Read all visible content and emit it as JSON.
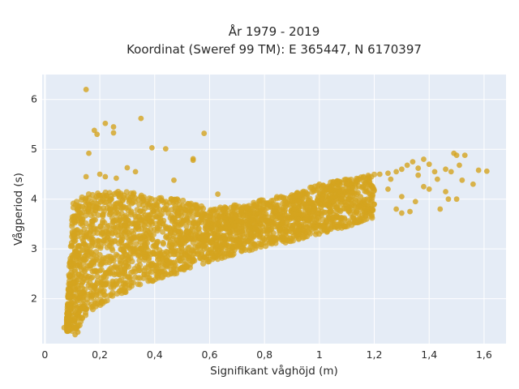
{
  "chart_data": {
    "type": "scatter",
    "title": "År 1979 - 2019",
    "subtitle": "Koordinat (Sweref 99 TM): E 365447, N 6170397",
    "xlabel": "Signifikant våghöjd (m)",
    "ylabel": "Vågperiod (s)",
    "xlim": [
      -0.01,
      1.68
    ],
    "ylim": [
      1.1,
      6.5
    ],
    "x_ticks": [
      0,
      0.2,
      0.4,
      0.6,
      0.8,
      1.0,
      1.2,
      1.4,
      1.6
    ],
    "x_tick_labels": [
      "0",
      "0,2",
      "0,4",
      "0,6",
      "0,8",
      "1",
      "1,2",
      "1,4",
      "1,6"
    ],
    "y_ticks": [
      2,
      3,
      4,
      5,
      6
    ],
    "y_tick_labels": [
      "2",
      "3",
      "4",
      "5",
      "6"
    ],
    "grid": true,
    "legend": "none",
    "marker_color": "#d4a41f",
    "background_color": "#e5ecf6",
    "band": {
      "x": [
        0.08,
        0.1,
        0.15,
        0.2,
        0.25,
        0.3,
        0.4,
        0.5,
        0.6,
        0.7,
        0.8,
        0.9,
        1.0,
        1.1,
        1.2
      ],
      "y_low": [
        1.35,
        1.3,
        1.6,
        1.85,
        2.0,
        2.15,
        2.35,
        2.55,
        2.75,
        2.9,
        3.05,
        3.15,
        3.3,
        3.45,
        3.6
      ],
      "y_high": [
        1.6,
        3.9,
        4.1,
        4.15,
        4.15,
        4.15,
        4.05,
        4.0,
        3.8,
        3.9,
        4.0,
        4.1,
        4.3,
        4.4,
        4.5
      ]
    },
    "points": [
      {
        "x": 0.15,
        "y": 6.2
      },
      {
        "x": 0.18,
        "y": 5.38
      },
      {
        "x": 0.19,
        "y": 5.3
      },
      {
        "x": 0.22,
        "y": 5.52
      },
      {
        "x": 0.25,
        "y": 5.45
      },
      {
        "x": 0.25,
        "y": 5.33
      },
      {
        "x": 0.35,
        "y": 5.62
      },
      {
        "x": 0.16,
        "y": 4.92
      },
      {
        "x": 0.39,
        "y": 5.03
      },
      {
        "x": 0.44,
        "y": 5.01
      },
      {
        "x": 0.58,
        "y": 5.32
      },
      {
        "x": 0.54,
        "y": 4.81
      },
      {
        "x": 0.54,
        "y": 4.78
      },
      {
        "x": 0.3,
        "y": 4.63
      },
      {
        "x": 0.33,
        "y": 4.55
      },
      {
        "x": 0.22,
        "y": 4.45
      },
      {
        "x": 0.26,
        "y": 4.42
      },
      {
        "x": 0.15,
        "y": 4.45
      },
      {
        "x": 0.2,
        "y": 4.5
      },
      {
        "x": 0.47,
        "y": 4.38
      },
      {
        "x": 0.63,
        "y": 4.1
      },
      {
        "x": 0.77,
        "y": 3.85
      },
      {
        "x": 0.86,
        "y": 4.05
      },
      {
        "x": 1.0,
        "y": 4.3
      },
      {
        "x": 1.05,
        "y": 4.35
      },
      {
        "x": 1.1,
        "y": 4.3
      },
      {
        "x": 1.18,
        "y": 4.45
      },
      {
        "x": 1.22,
        "y": 4.5
      },
      {
        "x": 1.25,
        "y": 4.52
      },
      {
        "x": 1.28,
        "y": 4.55
      },
      {
        "x": 1.3,
        "y": 4.6
      },
      {
        "x": 1.32,
        "y": 4.68
      },
      {
        "x": 1.34,
        "y": 4.75
      },
      {
        "x": 1.36,
        "y": 4.62
      },
      {
        "x": 1.38,
        "y": 4.8
      },
      {
        "x": 1.4,
        "y": 4.7
      },
      {
        "x": 1.42,
        "y": 4.55
      },
      {
        "x": 1.46,
        "y": 4.6
      },
      {
        "x": 1.48,
        "y": 4.55
      },
      {
        "x": 1.49,
        "y": 4.92
      },
      {
        "x": 1.5,
        "y": 4.88
      },
      {
        "x": 1.53,
        "y": 4.88
      },
      {
        "x": 1.51,
        "y": 4.68
      },
      {
        "x": 1.56,
        "y": 4.3
      },
      {
        "x": 1.58,
        "y": 4.58
      },
      {
        "x": 1.61,
        "y": 4.56
      },
      {
        "x": 1.25,
        "y": 4.2
      },
      {
        "x": 1.3,
        "y": 4.05
      },
      {
        "x": 1.35,
        "y": 3.95
      },
      {
        "x": 1.38,
        "y": 4.25
      },
      {
        "x": 1.43,
        "y": 4.4
      },
      {
        "x": 1.46,
        "y": 4.15
      },
      {
        "x": 1.5,
        "y": 4.0
      },
      {
        "x": 1.52,
        "y": 4.38
      },
      {
        "x": 1.44,
        "y": 3.8
      },
      {
        "x": 1.47,
        "y": 4.0
      },
      {
        "x": 1.33,
        "y": 3.75
      },
      {
        "x": 1.3,
        "y": 3.72
      },
      {
        "x": 1.28,
        "y": 3.8
      },
      {
        "x": 1.2,
        "y": 3.9
      },
      {
        "x": 1.15,
        "y": 4.05
      },
      {
        "x": 1.26,
        "y": 4.4
      },
      {
        "x": 1.36,
        "y": 4.48
      },
      {
        "x": 1.4,
        "y": 4.2
      },
      {
        "x": 0.95,
        "y": 3.9
      },
      {
        "x": 1.08,
        "y": 4.0
      },
      {
        "x": 0.07,
        "y": 1.42
      },
      {
        "x": 0.09,
        "y": 1.38
      },
      {
        "x": 0.11,
        "y": 1.28
      },
      {
        "x": 0.12,
        "y": 1.33
      }
    ]
  }
}
